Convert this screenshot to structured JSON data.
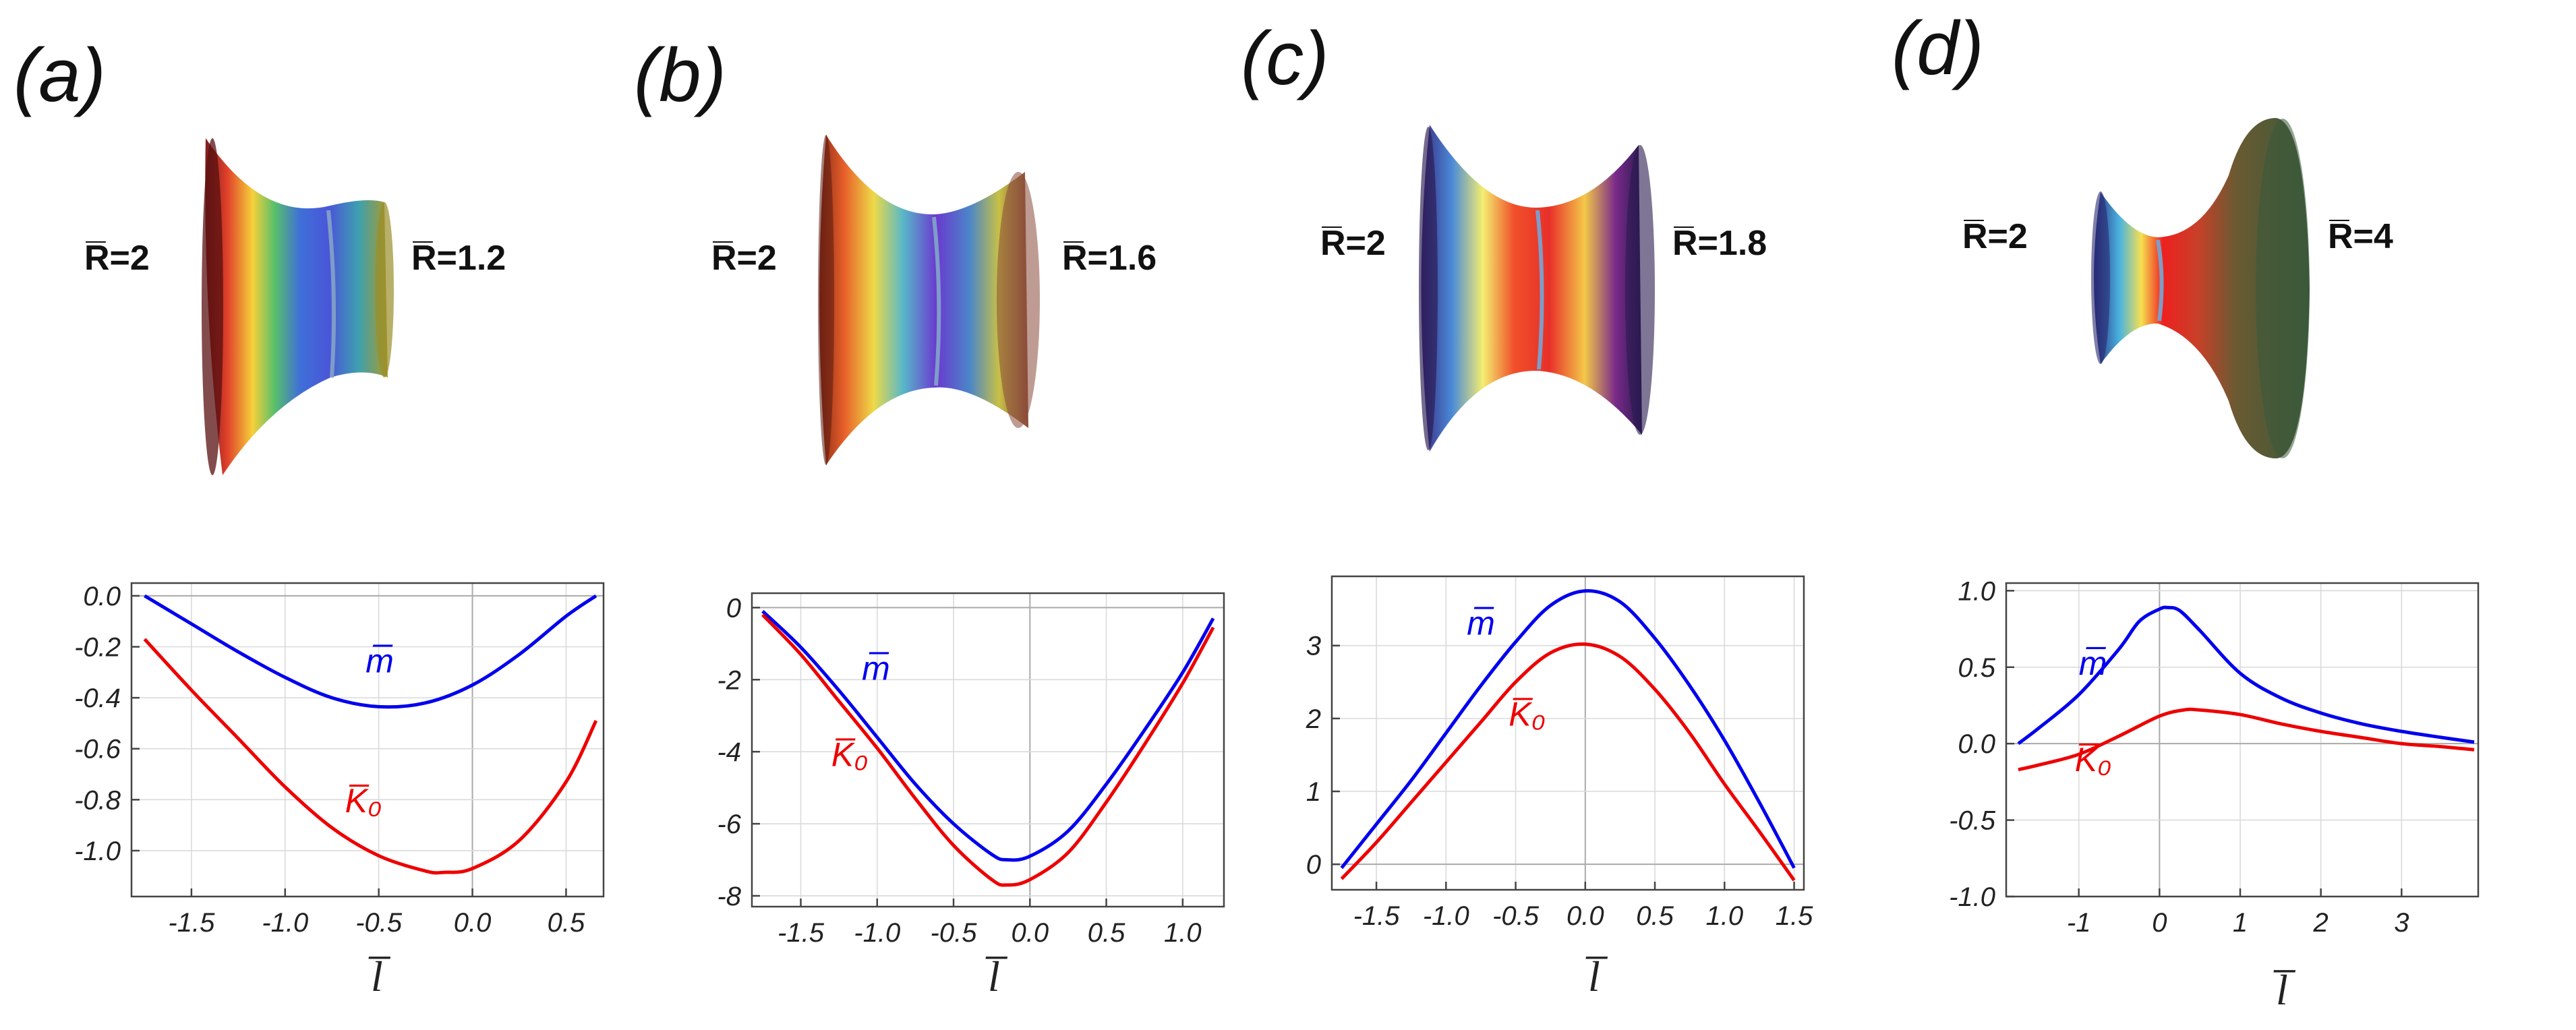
{
  "panels": [
    {
      "label": "(a)",
      "r_left": "R̅=2",
      "r_right": "R̅=1.2",
      "surface": {
        "left_radius": 2,
        "right_radius": 1.2,
        "neck_pos": 0.62
      },
      "chart_data": {
        "type": "line",
        "xlabel": "l̅",
        "xlim": [
          -1.82,
          0.7
        ],
        "ylim": [
          -1.18,
          0.05
        ],
        "xticks": [
          -1.5,
          -1.0,
          -0.5,
          0.0,
          0.5
        ],
        "xtick_labels": [
          "-1.5",
          "-1.0",
          "-0.5",
          "0.0",
          "0.5"
        ],
        "yticks": [
          0.0,
          -0.2,
          -0.4,
          -0.6,
          -0.8,
          -1.0
        ],
        "ytick_labels": [
          "0.0",
          "-0.2",
          "-0.4",
          "-0.6",
          "-0.8",
          "-1.0"
        ],
        "series": [
          {
            "name": "m̅",
            "color": "#0000ee",
            "x": [
              -1.75,
              -1.5,
              -1.25,
              -1.0,
              -0.75,
              -0.5,
              -0.25,
              0.0,
              0.25,
              0.5,
              0.66
            ],
            "y": [
              0.0,
              -0.11,
              -0.22,
              -0.32,
              -0.4,
              -0.435,
              -0.42,
              -0.35,
              -0.23,
              -0.08,
              0.0
            ]
          },
          {
            "name": "K̅₀",
            "color": "#ee0000",
            "x": [
              -1.75,
              -1.5,
              -1.25,
              -1.0,
              -0.75,
              -0.5,
              -0.25,
              -0.15,
              0.0,
              0.25,
              0.5,
              0.66
            ],
            "y": [
              -0.17,
              -0.37,
              -0.56,
              -0.75,
              -0.91,
              -1.02,
              -1.08,
              -1.085,
              -1.07,
              -0.96,
              -0.73,
              -0.49
            ]
          }
        ],
        "legend_positions": [
          [
            -0.57,
            -0.3
          ],
          [
            -0.68,
            -0.85
          ]
        ]
      }
    },
    {
      "label": "(b)",
      "r_left": "R̅=2",
      "r_right": "R̅=1.6",
      "surface": {
        "left_radius": 2,
        "right_radius": 1.6,
        "neck_pos": 0.55
      },
      "chart_data": {
        "type": "line",
        "xlabel": "l̅",
        "xlim": [
          -1.82,
          1.27
        ],
        "ylim": [
          -8.3,
          0.4
        ],
        "xticks": [
          -1.5,
          -1.0,
          -0.5,
          0.0,
          0.5,
          1.0
        ],
        "xtick_labels": [
          "-1.5",
          "-1.0",
          "-0.5",
          "0.0",
          "0.5",
          "1.0"
        ],
        "yticks": [
          0,
          -2,
          -4,
          -6,
          -8
        ],
        "ytick_labels": [
          "0",
          "-2",
          "-4",
          "-6",
          "-8"
        ],
        "series": [
          {
            "name": "m̅",
            "color": "#0000ee",
            "x": [
              -1.75,
              -1.5,
              -1.25,
              -1.0,
              -0.75,
              -0.5,
              -0.25,
              -0.15,
              0.0,
              0.25,
              0.5,
              0.75,
              1.0,
              1.2
            ],
            "y": [
              -0.1,
              -1.1,
              -2.3,
              -3.6,
              -4.9,
              -6.0,
              -6.85,
              -7.0,
              -6.9,
              -6.2,
              -4.9,
              -3.4,
              -1.8,
              -0.3
            ]
          },
          {
            "name": "K̅₀",
            "color": "#ee0000",
            "x": [
              -1.75,
              -1.5,
              -1.25,
              -1.0,
              -0.75,
              -0.5,
              -0.25,
              -0.15,
              0.0,
              0.25,
              0.5,
              0.75,
              1.0,
              1.2
            ],
            "y": [
              -0.2,
              -1.3,
              -2.6,
              -3.9,
              -5.3,
              -6.6,
              -7.55,
              -7.7,
              -7.55,
              -6.8,
              -5.4,
              -3.8,
              -2.1,
              -0.55
            ]
          }
        ],
        "legend_positions": [
          [
            -1.1,
            -2.0
          ],
          [
            -1.3,
            -4.4
          ]
        ]
      }
    },
    {
      "label": "(c)",
      "r_left": "R̅=2",
      "r_right": "R̅=1.8",
      "surface": {
        "left_radius": 2,
        "right_radius": 1.8,
        "neck_pos": 0.52
      },
      "chart_data": {
        "type": "line",
        "xlabel": "l̅",
        "xlim": [
          -1.82,
          1.57
        ],
        "ylim": [
          -0.35,
          3.95
        ],
        "xticks": [
          -1.5,
          -1.0,
          -0.5,
          0.0,
          0.5,
          1.0,
          1.5
        ],
        "xtick_labels": [
          "-1.5",
          "-1.0",
          "-0.5",
          "0.0",
          "0.5",
          "1.0",
          "1.5"
        ],
        "yticks": [
          0,
          1,
          2,
          3
        ],
        "ytick_labels": [
          "0",
          "1",
          "2",
          "3"
        ],
        "series": [
          {
            "name": "m̅",
            "color": "#0000ee",
            "x": [
              -1.75,
              -1.5,
              -1.25,
              -1.0,
              -0.75,
              -0.5,
              -0.25,
              0.0,
              0.25,
              0.5,
              0.75,
              1.0,
              1.25,
              1.5
            ],
            "y": [
              -0.05,
              0.55,
              1.15,
              1.8,
              2.45,
              3.05,
              3.55,
              3.75,
              3.6,
              3.1,
              2.45,
              1.7,
              0.85,
              -0.05
            ]
          },
          {
            "name": "K̅₀",
            "color": "#ee0000",
            "x": [
              -1.75,
              -1.5,
              -1.25,
              -1.0,
              -0.75,
              -0.5,
              -0.25,
              0.0,
              0.25,
              0.5,
              0.75,
              1.0,
              1.25,
              1.5
            ],
            "y": [
              -0.2,
              0.3,
              0.85,
              1.4,
              1.95,
              2.5,
              2.9,
              3.02,
              2.85,
              2.4,
              1.8,
              1.1,
              0.45,
              -0.22
            ]
          }
        ],
        "legend_positions": [
          [
            -0.85,
            3.15
          ],
          [
            -0.55,
            1.9
          ]
        ]
      }
    },
    {
      "label": "(d)",
      "r_left": "R̅=2",
      "r_right": "R̅=4",
      "surface": {
        "left_radius": 2,
        "right_radius": 4,
        "neck_pos": 0.3
      },
      "chart_data": {
        "type": "line",
        "xlabel": "l̅",
        "xlim": [
          -1.9,
          3.95
        ],
        "ylim": [
          -1.0,
          1.05
        ],
        "xticks": [
          -1,
          0,
          1,
          2,
          3
        ],
        "xtick_labels": [
          "-1",
          "0",
          "1",
          "2",
          "3"
        ],
        "yticks": [
          1.0,
          0.5,
          0.0,
          -0.5,
          -1.0
        ],
        "ytick_labels": [
          "1.0",
          "0.5",
          "0.0",
          "-0.5",
          "-1.0"
        ],
        "series": [
          {
            "name": "m̅",
            "color": "#0000ee",
            "x": [
              -1.75,
              -1.5,
              -1.0,
              -0.5,
              -0.25,
              0.0,
              0.1,
              0.25,
              0.5,
              1.0,
              1.5,
              2.0,
              2.5,
              3.0,
              3.5,
              3.9
            ],
            "y": [
              0.0,
              0.1,
              0.32,
              0.62,
              0.8,
              0.88,
              0.89,
              0.87,
              0.74,
              0.46,
              0.3,
              0.2,
              0.13,
              0.08,
              0.04,
              0.01
            ]
          },
          {
            "name": "K̅₀",
            "color": "#ee0000",
            "x": [
              -1.75,
              -1.5,
              -1.0,
              -0.5,
              0.0,
              0.3,
              0.5,
              1.0,
              1.5,
              2.0,
              2.5,
              3.0,
              3.5,
              3.9
            ],
            "y": [
              -0.17,
              -0.14,
              -0.07,
              0.05,
              0.18,
              0.22,
              0.22,
              0.19,
              0.13,
              0.08,
              0.04,
              0.0,
              -0.02,
              -0.04
            ]
          }
        ],
        "legend_positions": [
          [
            -1.0,
            0.45
          ],
          [
            -1.05,
            -0.18
          ]
        ]
      }
    }
  ]
}
